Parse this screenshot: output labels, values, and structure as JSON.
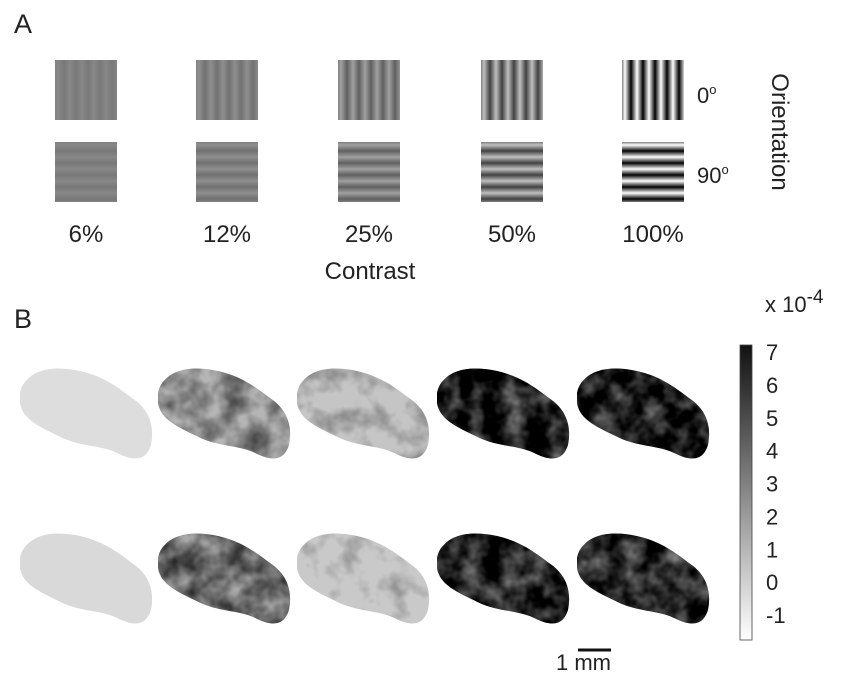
{
  "panel_a": {
    "letter": "A",
    "contrast_labels": [
      "6%",
      "12%",
      "25%",
      "50%",
      "100%"
    ],
    "contrast_title": "Contrast",
    "orientation_title": "Orientation",
    "orientations": [
      {
        "value": "0",
        "unit": "o"
      },
      {
        "value": "90",
        "unit": "o"
      }
    ]
  },
  "panel_b": {
    "letter": "B",
    "colorbar": {
      "base": "x 10",
      "exponent": "-4",
      "ticks": [
        "7",
        "6",
        "5",
        "4",
        "3",
        "2",
        "1",
        "0",
        "-1"
      ]
    },
    "scale_bar": "1 mm"
  }
}
